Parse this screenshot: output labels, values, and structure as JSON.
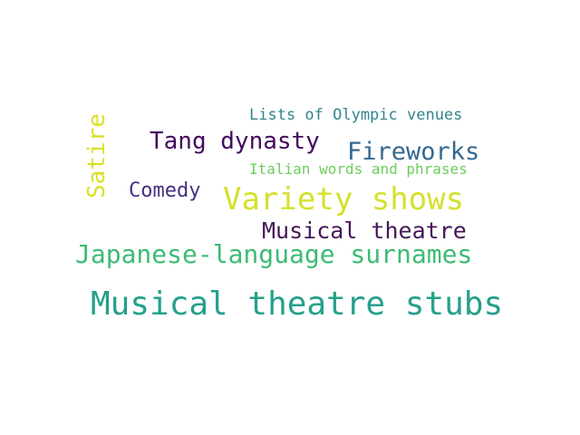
{
  "words": [
    {
      "text": "Lists of Olympic venues",
      "color": "#31858d"
    },
    {
      "text": "Tang dynasty",
      "color": "#440a5e"
    },
    {
      "text": "Fireworks",
      "color": "#35688f"
    },
    {
      "text": "Italian words and phrases",
      "color": "#6ccd5a"
    },
    {
      "text": "Satire",
      "color": "#dbe02a"
    },
    {
      "text": "Comedy",
      "color": "#46307e"
    },
    {
      "text": "Variety shows",
      "color": "#d6e02c"
    },
    {
      "text": "Musical theatre",
      "color": "#461758"
    },
    {
      "text": "Japanese-language surnames",
      "color": "#3dbb74"
    },
    {
      "text": "Musical theatre stubs",
      "color": "#25a08a"
    }
  ]
}
